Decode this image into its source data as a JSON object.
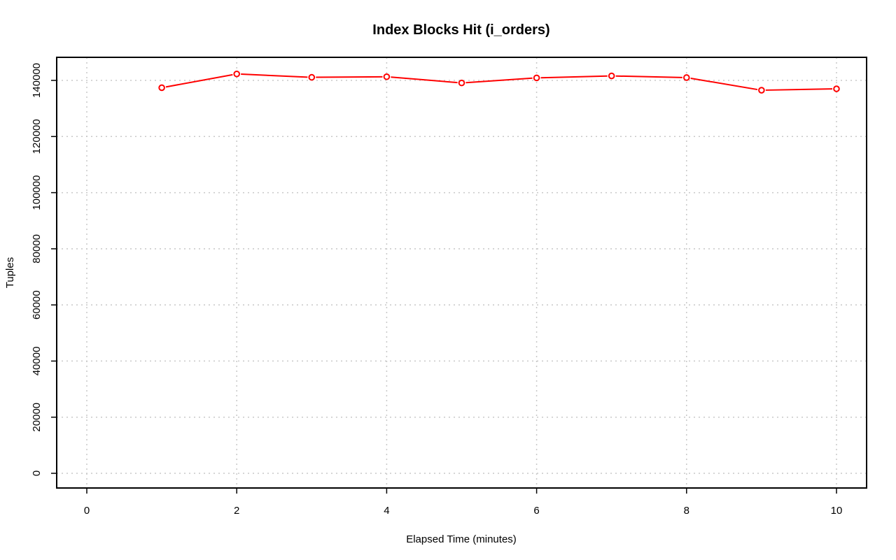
{
  "chart_data": {
    "type": "line",
    "title": "Index Blocks Hit (i_orders)",
    "xlabel": "Elapsed Time (minutes)",
    "ylabel": "Tuples",
    "xlim": [
      0,
      10
    ],
    "ylim": [
      0,
      140000
    ],
    "xticks": [
      0,
      2,
      4,
      6,
      8,
      10
    ],
    "yticks": [
      0,
      20000,
      40000,
      60000,
      80000,
      100000,
      120000,
      140000
    ],
    "grid": true,
    "color": "#ff0000",
    "x": [
      1,
      2,
      3,
      4,
      5,
      6,
      7,
      8,
      9,
      10
    ],
    "series": [
      {
        "values": [
          137400,
          142300,
          141100,
          141300,
          139100,
          140900,
          141600,
          141000,
          136500,
          137000
        ]
      }
    ]
  }
}
